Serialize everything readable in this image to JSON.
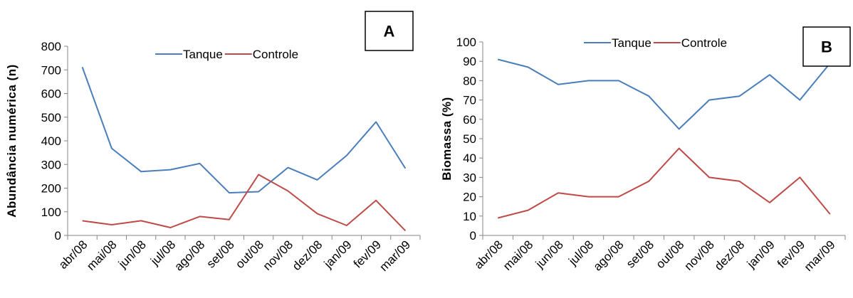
{
  "chart_data": [
    {
      "type": "line",
      "panel_label": "A",
      "title": "",
      "xlabel": "",
      "ylabel": "Abundância numérica (n)",
      "categories": [
        "abr/08",
        "mai/08",
        "jun/08",
        "jul/08",
        "ago/08",
        "set/08",
        "out/08",
        "nov/08",
        "dez/08",
        "jan/09",
        "fev/09",
        "mar/09"
      ],
      "ylim": [
        0,
        800
      ],
      "yticks": [
        0,
        100,
        200,
        300,
        400,
        500,
        600,
        700,
        800
      ],
      "grid": false,
      "legend": "top-center",
      "series": [
        {
          "name": "Tanque",
          "color": "#4a7ebb",
          "values": [
            712,
            368,
            270,
            278,
            304,
            180,
            185,
            287,
            235,
            338,
            480,
            283
          ]
        },
        {
          "name": "Controle",
          "color": "#be4b48",
          "values": [
            62,
            45,
            62,
            33,
            80,
            67,
            257,
            188,
            92,
            42,
            148,
            20
          ]
        }
      ]
    },
    {
      "type": "line",
      "panel_label": "B",
      "title": "",
      "xlabel": "",
      "ylabel": "Biomassa (%)",
      "categories": [
        "abr/08",
        "mai/08",
        "jun/08",
        "jul/08",
        "ago/08",
        "set/08",
        "out/08",
        "nov/08",
        "dez/08",
        "jan/09",
        "fev/09",
        "mar/09"
      ],
      "ylim": [
        0,
        100
      ],
      "yticks": [
        0,
        10,
        20,
        30,
        40,
        50,
        60,
        70,
        80,
        90,
        100
      ],
      "grid": false,
      "legend": "top-center",
      "series": [
        {
          "name": "Tanque",
          "color": "#4a7ebb",
          "values": [
            91,
            87,
            78,
            80,
            80,
            72,
            55,
            70,
            72,
            83,
            70,
            89
          ]
        },
        {
          "name": "Controle",
          "color": "#be4b48",
          "values": [
            9,
            13,
            22,
            20,
            20,
            28,
            45,
            30,
            28,
            17,
            30,
            11
          ]
        }
      ]
    }
  ]
}
